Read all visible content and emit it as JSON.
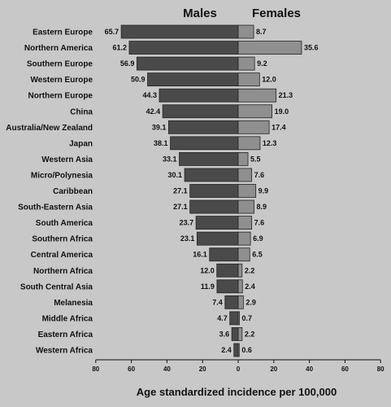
{
  "chart_data": {
    "type": "bar",
    "orientation": "horizontal-diverging",
    "headers": {
      "males": "Males",
      "females": "Females"
    },
    "xlabel": "Age standardized incidence per 100,000",
    "xlim": [
      -80,
      80
    ],
    "ticks": [
      "80",
      "60",
      "40",
      "20",
      "0",
      "20",
      "40",
      "60",
      "80"
    ],
    "categories": [
      "Eastern Europe",
      "Northern America",
      "Southern Europe",
      "Western Europe",
      "Northern Europe",
      "China",
      "Australia/New Zealand",
      "Japan",
      "Western Asia",
      "Micro/Polynesia",
      "Caribbean",
      "South-Eastern Asia",
      "South America",
      "Southern Africa",
      "Central America",
      "Northern Africa",
      "South Central Asia",
      "Melanesia",
      "Middle Africa",
      "Eastern Africa",
      "Western Africa"
    ],
    "series": [
      {
        "name": "Males",
        "color": "#4a4a4a",
        "values": [
          65.7,
          61.2,
          56.9,
          50.9,
          44.3,
          42.4,
          39.1,
          38.1,
          33.1,
          30.1,
          27.1,
          27.1,
          23.7,
          23.1,
          16.1,
          12.0,
          11.9,
          7.4,
          4.7,
          3.6,
          2.4
        ],
        "labels": [
          "65.7",
          "61.2",
          "56.9",
          "50.9",
          "44.3",
          "42.4",
          "39.1",
          "38.1",
          "33.1",
          "30.1",
          "27.1",
          "27.1",
          "23.7",
          "23.1",
          "16.1",
          "12.0",
          "11.9",
          "7.4",
          "4.7",
          "3.6",
          "2.4"
        ]
      },
      {
        "name": "Females",
        "color": "#8f8f8f",
        "values": [
          8.7,
          35.6,
          9.2,
          12.0,
          21.3,
          19.0,
          17.4,
          12.3,
          5.5,
          7.6,
          9.9,
          8.9,
          7.6,
          6.9,
          6.5,
          2.2,
          2.4,
          2.9,
          0.7,
          2.2,
          0.6
        ],
        "labels": [
          "8.7",
          "35.6",
          "9.2",
          "12.0",
          "21.3",
          "19.0",
          "17.4",
          "12.3",
          "5.5",
          "7.6",
          "9.9",
          "8.9",
          "7.6",
          "6.9",
          "6.5",
          "2.2",
          "2.4",
          "2.9",
          "0.7",
          "2.2",
          "0.6"
        ]
      }
    ],
    "grid": false,
    "legend": "none"
  }
}
